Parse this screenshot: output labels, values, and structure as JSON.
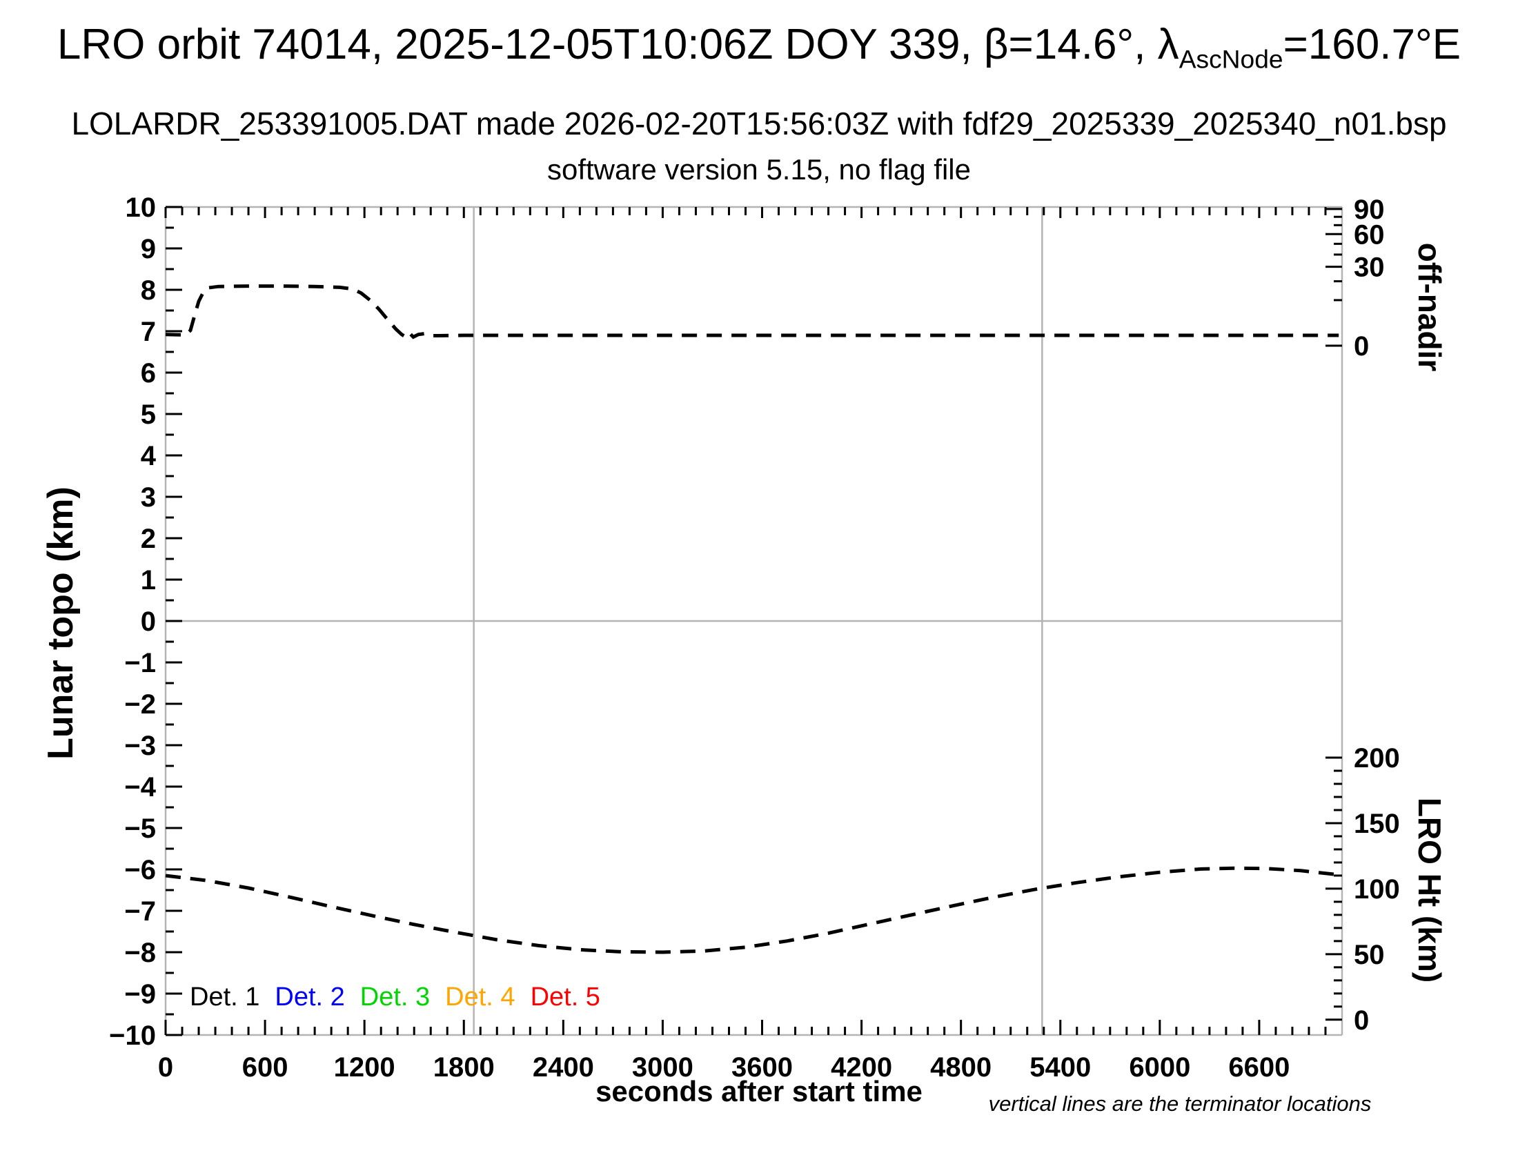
{
  "header": {
    "title_pre": "LRO orbit 74014, 2025-12-05T10:06Z DOY 339, β=14.6°, λ",
    "title_sub": "AscNode",
    "title_post": "=160.7°E",
    "line2": "LOLARDR_253391005.DAT made 2026-02-20T15:56:03Z with fdf29_2025339_2025340_n01.bsp",
    "line3": "software version 5.15, no flag file"
  },
  "footnote": "vertical lines are the terminator locations",
  "legend": {
    "entries": [
      {
        "label": "Det. 1",
        "color": "#000000"
      },
      {
        "label": "Det. 2",
        "color": "#0000ff"
      },
      {
        "label": "Det. 3",
        "color": "#00d500"
      },
      {
        "label": "Det. 4",
        "color": "#ffa500"
      },
      {
        "label": "Det. 5",
        "color": "#ff0000"
      }
    ]
  },
  "colors": {
    "axis_line": "#b4b4b4",
    "tick": "#000000",
    "curve": "#000000",
    "terminator_line": "#b4b4b4"
  },
  "chart_data": {
    "type": "line",
    "title": "LRO orbit 74014, 2025-12-05T10:06Z DOY 339, β=14.6°, λAscNode=160.7°E",
    "xlabel": "seconds after start time",
    "ylabel_left": "Lunar topo (km)",
    "ylabel_right_top": "off-nadir",
    "ylabel_right_bottom": "LRO Ht (km)",
    "xlim": [
      0,
      7100
    ],
    "ylim_left": [
      -10,
      10
    ],
    "grid": "horizontal line at topo=0 only",
    "legend_position": "inside lower-left",
    "axes": {
      "x": {
        "major_step": 600,
        "minor_step": 100,
        "tick_values": [
          0,
          600,
          1200,
          1800,
          2400,
          3000,
          3600,
          4200,
          4800,
          5400,
          6000,
          6600
        ],
        "tick_labels": [
          "0",
          "600",
          "1200",
          "1800",
          "2400",
          "3000",
          "3600",
          "4200",
          "4800",
          "5400",
          "6000",
          "6600"
        ]
      },
      "y_left": {
        "major_step": 1,
        "minor_step": 0.5,
        "tick_values": [
          -10,
          -9,
          -8,
          -7,
          -6,
          -5,
          -4,
          -3,
          -2,
          -1,
          0,
          1,
          2,
          3,
          4,
          5,
          6,
          7,
          8,
          9,
          10
        ],
        "tick_labels": [
          "−10",
          "−9",
          "−8",
          "−7",
          "−6",
          "−5",
          "−4",
          "−3",
          "−2",
          "−1",
          "0",
          "1",
          "2",
          "3",
          "4",
          "5",
          "6",
          "7",
          "8",
          "9",
          "10"
        ]
      },
      "y_right_top": {
        "units": "degrees off-nadir",
        "scale": "square-root; plotted_topo_value = 6.65 + 0.348*sqrt(deg)",
        "tick_values_deg": [
          0,
          30,
          60,
          90
        ],
        "tick_labels": [
          "0",
          "30",
          "60",
          "90"
        ],
        "minor_tick_values_deg": [
          10,
          20,
          40,
          50,
          70,
          80
        ]
      },
      "y_right_bottom": {
        "units": "km above lunar surface",
        "scale": "linear; plotted_topo_value = -9.63 + km/31.6",
        "tick_values_km": [
          0,
          50,
          100,
          150,
          200
        ],
        "tick_labels": [
          "0",
          "50",
          "100",
          "150",
          "200"
        ],
        "minor_step_km": 10
      }
    },
    "terminator_lines_t": [
      1860,
      5290
    ],
    "series": [
      {
        "name": "spacecraft off-nadir angle",
        "axis": "y_right_top",
        "color": "#000000",
        "style": "dashed",
        "note": "near-nadir (~0.5°) except slew plateau (~17°, plotted at topo level ≈ 8) during t ≈ 250–1150 s",
        "points_t_plotv_deg": [
          [
            0,
            6.92,
            0.6
          ],
          [
            120,
            6.91,
            0.56
          ],
          [
            150,
            7.02,
            1.1
          ],
          [
            175,
            7.38,
            4.4
          ],
          [
            200,
            7.72,
            9.5
          ],
          [
            230,
            7.96,
            14.2
          ],
          [
            260,
            8.05,
            16.2
          ],
          [
            320,
            8.08,
            16.9
          ],
          [
            500,
            8.09,
            17.1
          ],
          [
            700,
            8.09,
            17.1
          ],
          [
            900,
            8.08,
            16.9
          ],
          [
            1050,
            8.06,
            16.4
          ],
          [
            1130,
            8.02,
            15.5
          ],
          [
            1180,
            7.92,
            13.3
          ],
          [
            1240,
            7.73,
            9.6
          ],
          [
            1290,
            7.52,
            6.2
          ],
          [
            1340,
            7.28,
            3.3
          ],
          [
            1390,
            7.05,
            1.3
          ],
          [
            1425,
            6.92,
            0.6
          ],
          [
            1450,
            6.86,
            0.36
          ],
          [
            1470,
            6.96,
            0.79
          ],
          [
            1495,
            6.86,
            0.36
          ],
          [
            1525,
            6.92,
            0.6
          ],
          [
            1560,
            6.94,
            0.69
          ],
          [
            1600,
            6.89,
            0.48
          ],
          [
            1800,
            6.9,
            0.52
          ],
          [
            2400,
            6.9,
            0.52
          ],
          [
            3000,
            6.9,
            0.52
          ],
          [
            3600,
            6.9,
            0.52
          ],
          [
            4200,
            6.9,
            0.52
          ],
          [
            4800,
            6.9,
            0.52
          ],
          [
            5400,
            6.9,
            0.52
          ],
          [
            6000,
            6.9,
            0.52
          ],
          [
            6600,
            6.9,
            0.52
          ],
          [
            7080,
            6.9,
            0.52
          ]
        ]
      },
      {
        "name": "LRO height above surface",
        "axis": "y_right_bottom",
        "color": "#000000",
        "style": "dashed",
        "note": "height varies ~51 km (t≈3000) to ~116 km (t≈6450); plotted between topo levels −8 and −6",
        "points_t_plotv_km": [
          [
            0,
            -6.15,
            110.0
          ],
          [
            250,
            -6.27,
            106.2
          ],
          [
            500,
            -6.45,
            100.5
          ],
          [
            750,
            -6.67,
            93.6
          ],
          [
            1000,
            -6.9,
            86.3
          ],
          [
            1250,
            -7.12,
            79.3
          ],
          [
            1500,
            -7.33,
            72.7
          ],
          [
            1750,
            -7.52,
            66.7
          ],
          [
            2000,
            -7.7,
            61.0
          ],
          [
            2250,
            -7.84,
            56.6
          ],
          [
            2500,
            -7.94,
            53.4
          ],
          [
            2750,
            -7.99,
            51.8
          ],
          [
            3000,
            -8.0,
            51.5
          ],
          [
            3250,
            -7.97,
            52.5
          ],
          [
            3500,
            -7.88,
            55.3
          ],
          [
            3750,
            -7.73,
            60.0
          ],
          [
            4000,
            -7.54,
            66.0
          ],
          [
            4250,
            -7.32,
            73.0
          ],
          [
            4500,
            -7.1,
            80.0
          ],
          [
            4750,
            -6.88,
            86.9
          ],
          [
            5000,
            -6.67,
            93.6
          ],
          [
            5250,
            -6.48,
            99.5
          ],
          [
            5500,
            -6.32,
            104.6
          ],
          [
            5750,
            -6.18,
            109.0
          ],
          [
            6000,
            -6.07,
            112.5
          ],
          [
            6250,
            -5.99,
            115.0
          ],
          [
            6450,
            -5.97,
            115.7
          ],
          [
            6650,
            -5.98,
            115.3
          ],
          [
            6850,
            -6.03,
            113.8
          ],
          [
            7080,
            -6.13,
            110.6
          ]
        ]
      }
    ],
    "detector_series_plotted": "none visible — Det. 1–5 topography curves absent from plot area (legend only)"
  }
}
